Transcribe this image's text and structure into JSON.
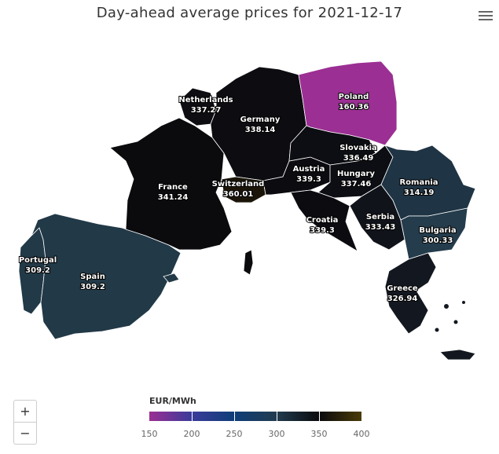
{
  "title": "Day-ahead average prices for 2021-12-17",
  "menu": {
    "icon": "hamburger-menu-icon"
  },
  "zoom": {
    "in_label": "+",
    "out_label": "−"
  },
  "legend": {
    "title": "EUR/MWh",
    "min": 150,
    "max": 400,
    "ticks": [
      "150",
      "200",
      "250",
      "300",
      "350",
      "400"
    ]
  },
  "colors": {
    "low": "#9b2f93",
    "mid": "#233b4a",
    "high": "#0a0a0d",
    "ocean": "#ffffff"
  },
  "countries": [
    {
      "name": "Netherlands",
      "value": "337.27",
      "color": "#0d0d12"
    },
    {
      "name": "Germany",
      "value": "338.14",
      "color": "#0c0c11"
    },
    {
      "name": "Poland",
      "value": "160.36",
      "color": "#9b2f93"
    },
    {
      "name": "Slovakia",
      "value": "336.49",
      "color": "#0d0e13"
    },
    {
      "name": "Austria",
      "value": "339.3",
      "color": "#0b0b10"
    },
    {
      "name": "Hungary",
      "value": "337.46",
      "color": "#0d0e13"
    },
    {
      "name": "France",
      "value": "341.24",
      "color": "#0b0b0e"
    },
    {
      "name": "Switzerland",
      "value": "360.01",
      "color": "#1a1508"
    },
    {
      "name": "Romania",
      "value": "314.19",
      "color": "#1f3444"
    },
    {
      "name": "Croatia",
      "value": "339.3",
      "color": "#0b0b10"
    },
    {
      "name": "Serbia",
      "value": "333.43",
      "color": "#10131a"
    },
    {
      "name": "Bulgaria",
      "value": "300.33",
      "color": "#243c4c"
    },
    {
      "name": "Portugal",
      "value": "309.2",
      "color": "#223947"
    },
    {
      "name": "Spain",
      "value": "309.2",
      "color": "#223947"
    },
    {
      "name": "Greece",
      "value": "326.94",
      "color": "#131820"
    }
  ]
}
